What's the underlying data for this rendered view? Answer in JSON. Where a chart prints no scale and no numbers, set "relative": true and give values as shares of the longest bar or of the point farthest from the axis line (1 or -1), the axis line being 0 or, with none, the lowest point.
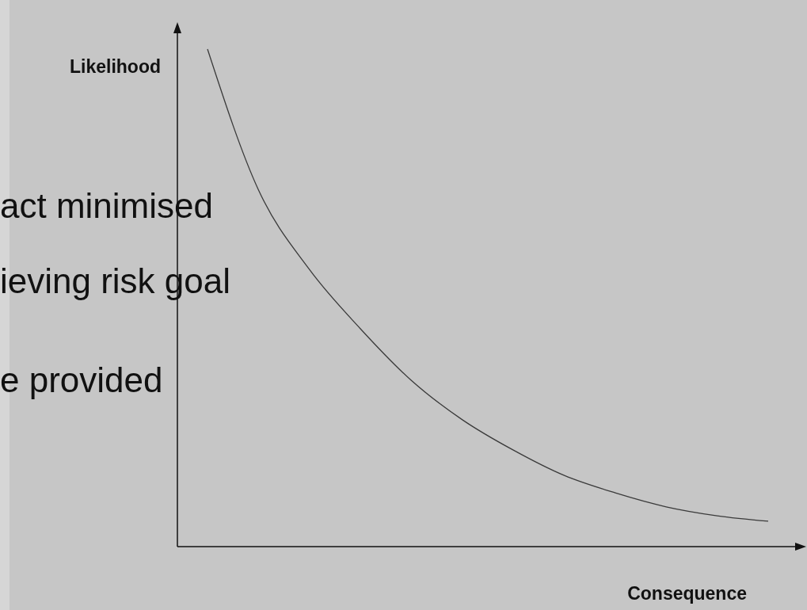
{
  "chart_data": {
    "type": "line",
    "relative": true,
    "xlabel": "Consequence",
    "ylabel": "Likelihood",
    "categories": [
      null,
      null,
      null,
      null,
      null,
      null,
      null,
      null,
      null,
      null,
      null,
      null
    ],
    "series": [
      {
        "color": "#3a3a3a",
        "values": [
          1.0,
          0.717,
          0.557,
          0.438,
          0.334,
          0.255,
          0.194,
          0.143,
          0.108,
          0.08,
          0.062,
          0.051
        ]
      }
    ],
    "annotations": [
      "act minimised",
      "ieving risk goal",
      "e provided"
    ],
    "grid": false,
    "line_style": "solid"
  }
}
